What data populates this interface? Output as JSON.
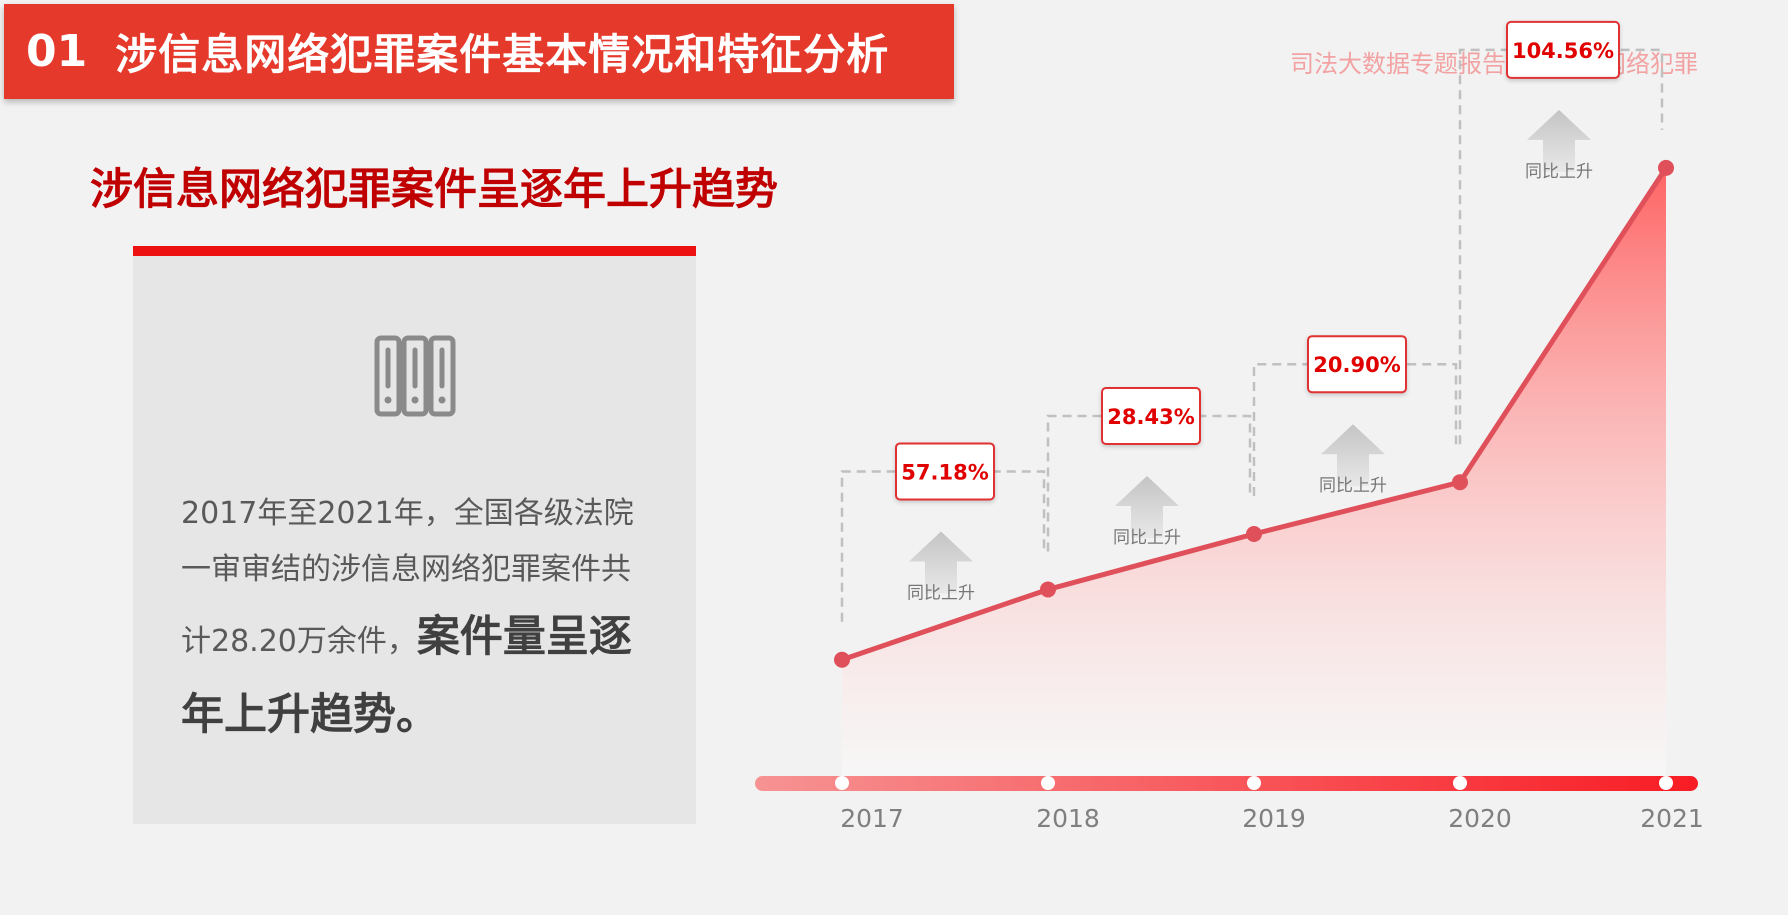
{
  "header": {
    "number": "01",
    "title": "涉信息网络犯罪案件基本情况和特征分析",
    "report_tag": "司法大数据专题报告之涉信息网络犯罪"
  },
  "section_heading": "涉信息网络犯罪案件呈逐年上升趋势",
  "info_card": {
    "icon": "binders-icon",
    "text_line1": "2017年至2021年，全国各级法院",
    "text_line2": "一审审结的涉信息网络犯罪案件共",
    "text_line3": "计28.20万余件，",
    "text_emph": "案件量呈逐年上升趋势。"
  },
  "colors": {
    "accent": "#e5392b",
    "heading": "#c00000",
    "line": "#e0505a",
    "label_text": "#e00000"
  },
  "chart_data": {
    "type": "area",
    "categories": [
      "2017",
      "2018",
      "2019",
      "2020",
      "2021"
    ],
    "values": [
      1.0,
      1.57,
      2.02,
      2.44,
      4.99
    ],
    "ylim": [
      0,
      5.5
    ],
    "growth_labels": [
      "57.18%",
      "28.43%",
      "20.90%",
      "104.56%"
    ],
    "growth_caption": "同比上升",
    "grid": false,
    "legend": "none"
  }
}
